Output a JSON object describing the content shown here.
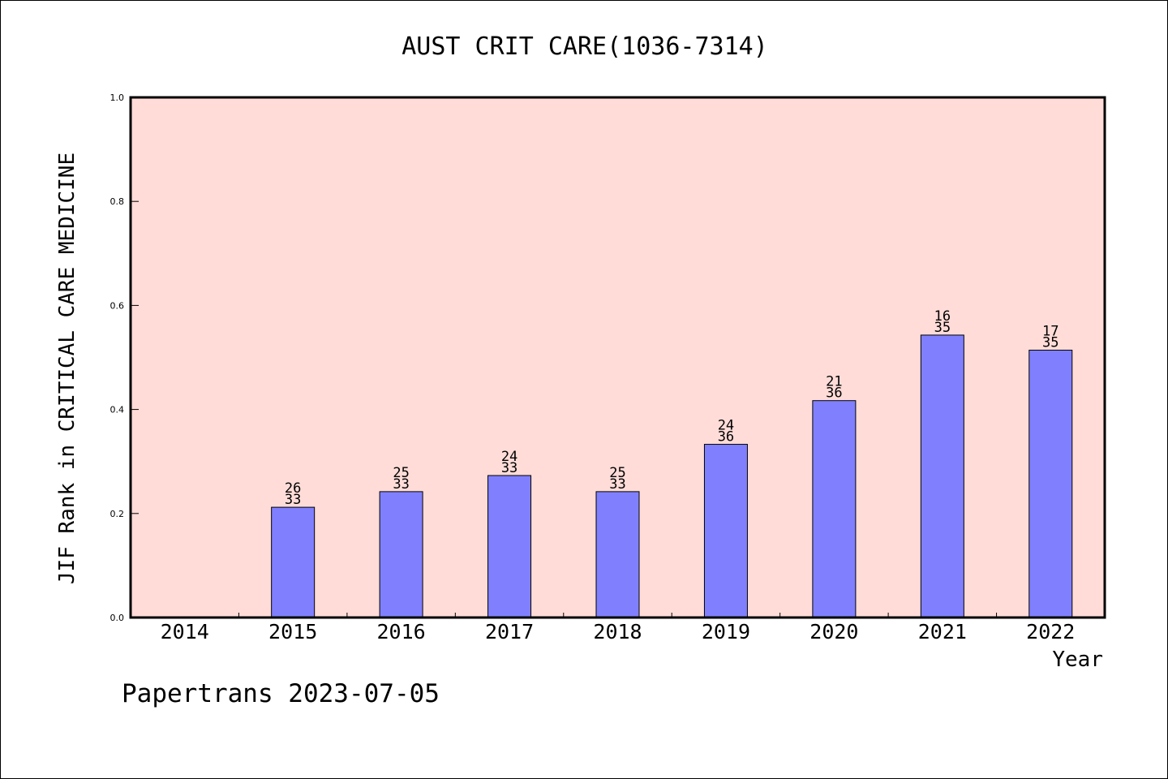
{
  "chart_data": {
    "type": "bar",
    "title": "AUST CRIT CARE(1036-7314)",
    "xlabel": "Year",
    "ylabel": "JIF Rank in CRITICAL CARE MEDICINE",
    "ylim": [
      0,
      1.0
    ],
    "yticks": [
      "0.0",
      "0.2",
      "0.4",
      "0.6",
      "0.8",
      "1.0"
    ],
    "categories": [
      "2014",
      "2015",
      "2016",
      "2017",
      "2018",
      "2019",
      "2020",
      "2021",
      "2022"
    ],
    "values": [
      null,
      0.212,
      0.242,
      0.273,
      0.242,
      0.333,
      0.417,
      0.543,
      0.514
    ],
    "labels": [
      null,
      {
        "rank": "26",
        "total": "33"
      },
      {
        "rank": "25",
        "total": "33"
      },
      {
        "rank": "24",
        "total": "33"
      },
      {
        "rank": "25",
        "total": "33"
      },
      {
        "rank": "24",
        "total": "36"
      },
      {
        "rank": "21",
        "total": "36"
      },
      {
        "rank": "16",
        "total": "35"
      },
      {
        "rank": "17",
        "total": "35"
      }
    ],
    "bar_color": "#8080ff",
    "plot_background": "#ffdcd8",
    "grid": false
  },
  "footer": {
    "credit": "Papertrans 2023-07-05"
  }
}
